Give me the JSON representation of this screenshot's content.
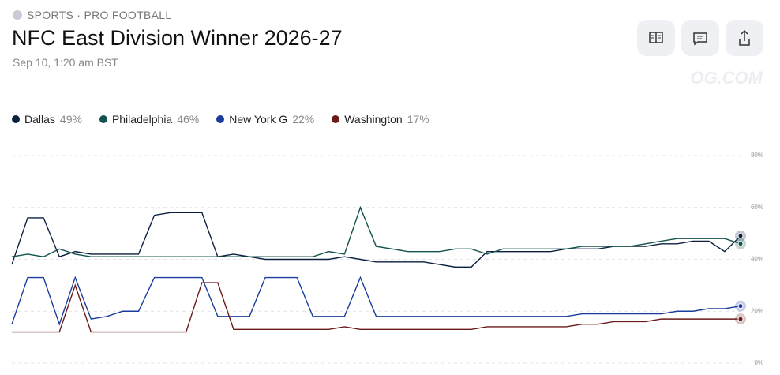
{
  "header": {
    "breadcrumb": "SPORTS · PRO FOOTBALL",
    "title": "NFC East Division Winner 2026-27",
    "subtitle": "Sep 10, 1:20 am BST",
    "watermark": "OG.COM"
  },
  "chart_data": {
    "type": "line",
    "series": [
      {
        "name": "Dallas",
        "legend_label": "49%",
        "color": "#0b1f3f",
        "values": [
          38,
          56,
          56,
          41,
          43,
          42,
          42,
          42,
          42,
          57,
          58,
          58,
          58,
          41,
          42,
          41,
          40,
          40,
          40,
          40,
          40,
          41,
          40,
          39,
          39,
          39,
          39,
          38,
          37,
          37,
          43,
          43,
          43,
          43,
          43,
          44,
          44,
          44,
          45,
          45,
          45,
          46,
          46,
          47,
          47,
          43,
          49
        ]
      },
      {
        "name": "Philadelphia",
        "legend_label": "46%",
        "color": "#13524d",
        "values": [
          41,
          42,
          41,
          44,
          42,
          41,
          41,
          41,
          41,
          41,
          41,
          41,
          41,
          41,
          41,
          41,
          41,
          41,
          41,
          41,
          43,
          42,
          60,
          45,
          44,
          43,
          43,
          43,
          44,
          44,
          42,
          44,
          44,
          44,
          44,
          44,
          45,
          45,
          45,
          45,
          46,
          47,
          48,
          48,
          48,
          48,
          46
        ]
      },
      {
        "name": "New York G",
        "legend_label": "22%",
        "color": "#1a3d9c",
        "values": [
          15,
          33,
          33,
          15,
          33,
          17,
          18,
          20,
          20,
          33,
          33,
          33,
          33,
          18,
          18,
          18,
          33,
          33,
          33,
          18,
          18,
          18,
          33,
          18,
          18,
          18,
          18,
          18,
          18,
          18,
          18,
          18,
          18,
          18,
          18,
          18,
          19,
          19,
          19,
          19,
          19,
          19,
          20,
          20,
          21,
          21,
          22
        ]
      },
      {
        "name": "Washington",
        "legend_label": "17%",
        "color": "#6b1a1a",
        "values": [
          12,
          12,
          12,
          12,
          30,
          12,
          12,
          12,
          12,
          12,
          12,
          12,
          31,
          31,
          13,
          13,
          13,
          13,
          13,
          13,
          13,
          14,
          13,
          13,
          13,
          13,
          13,
          13,
          13,
          13,
          14,
          14,
          14,
          14,
          14,
          14,
          15,
          15,
          16,
          16,
          16,
          17,
          17,
          17,
          17,
          17,
          17
        ]
      }
    ],
    "ylim": [
      0,
      80
    ],
    "yticks": [
      {
        "value": 0,
        "label": "0%"
      },
      {
        "value": 20,
        "label": "20%"
      },
      {
        "value": 40,
        "label": "40%"
      },
      {
        "value": 60,
        "label": "60%"
      },
      {
        "value": 80,
        "label": "80%"
      }
    ],
    "grid": true
  }
}
